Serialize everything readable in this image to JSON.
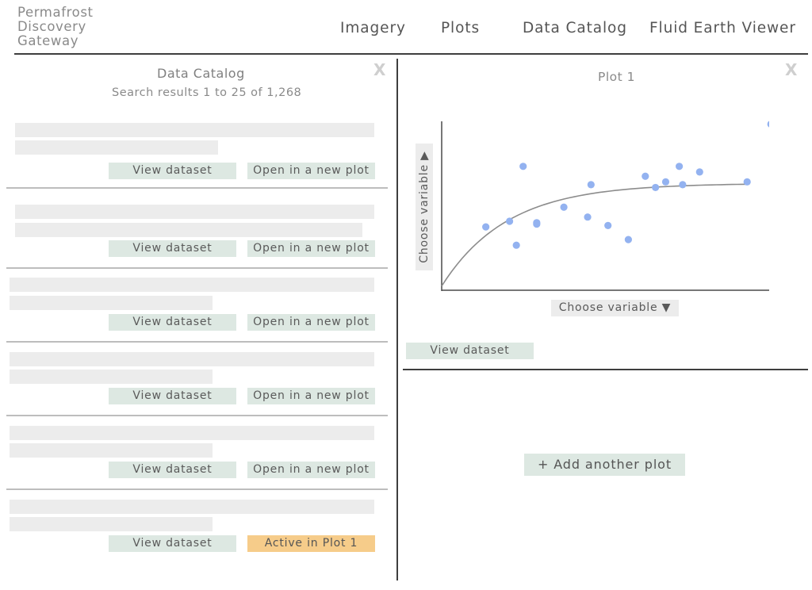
{
  "header": {
    "logo_lines": [
      "Permafrost",
      "Discovery",
      "Gateway"
    ],
    "nav": {
      "imagery": "Imagery",
      "plots": "Plots",
      "catalog": "Data Catalog",
      "fluid": "Fluid Earth Viewer"
    }
  },
  "catalog": {
    "title": "Data Catalog",
    "subtitle": "Search results 1 to 25 of 1,268",
    "close_label": "X",
    "results": [
      {
        "view_label": "View dataset",
        "action_label": "Open in a new plot",
        "active": false
      },
      {
        "view_label": "View dataset",
        "action_label": "Open in a new plot",
        "active": false
      },
      {
        "view_label": "View dataset",
        "action_label": "Open in a new plot",
        "active": false
      },
      {
        "view_label": "View dataset",
        "action_label": "Open in a new plot",
        "active": false
      },
      {
        "view_label": "View dataset",
        "action_label": "Open in a new plot",
        "active": false
      },
      {
        "view_label": "View dataset",
        "action_label": "Active in Plot 1",
        "active": true
      }
    ]
  },
  "plot": {
    "title": "Plot 1",
    "close_label": "X",
    "y_selector": "Choose variable ▶",
    "x_selector": "Choose variable ▼",
    "view_label": "View dataset",
    "add_label": "+ Add another plot"
  },
  "colors": {
    "point": "#93b2f0",
    "curve": "#8c8c8c",
    "button_green": "#dde8e2",
    "button_active": "#f6cc8a"
  },
  "chart_data": {
    "type": "scatter",
    "title": "",
    "xlabel": "",
    "ylabel": "",
    "x": [
      0.13,
      0.2,
      0.22,
      0.24,
      0.28,
      0.36,
      0.43,
      0.44,
      0.49,
      0.55,
      0.6,
      0.63,
      0.7,
      0.71,
      0.76,
      0.9,
      0.97,
      0.28,
      0.66
    ],
    "y": [
      0.45,
      0.49,
      0.32,
      0.88,
      0.47,
      0.59,
      0.52,
      0.75,
      0.46,
      0.36,
      0.81,
      0.73,
      0.88,
      0.75,
      0.84,
      0.77,
      1.18,
      0.48,
      0.77
    ],
    "trend": {
      "shape": "saturating",
      "plateau": 0.76
    },
    "xlim": [
      0,
      1
    ],
    "ylim": [
      0,
      1.2
    ],
    "ticks": false,
    "grid": false
  }
}
